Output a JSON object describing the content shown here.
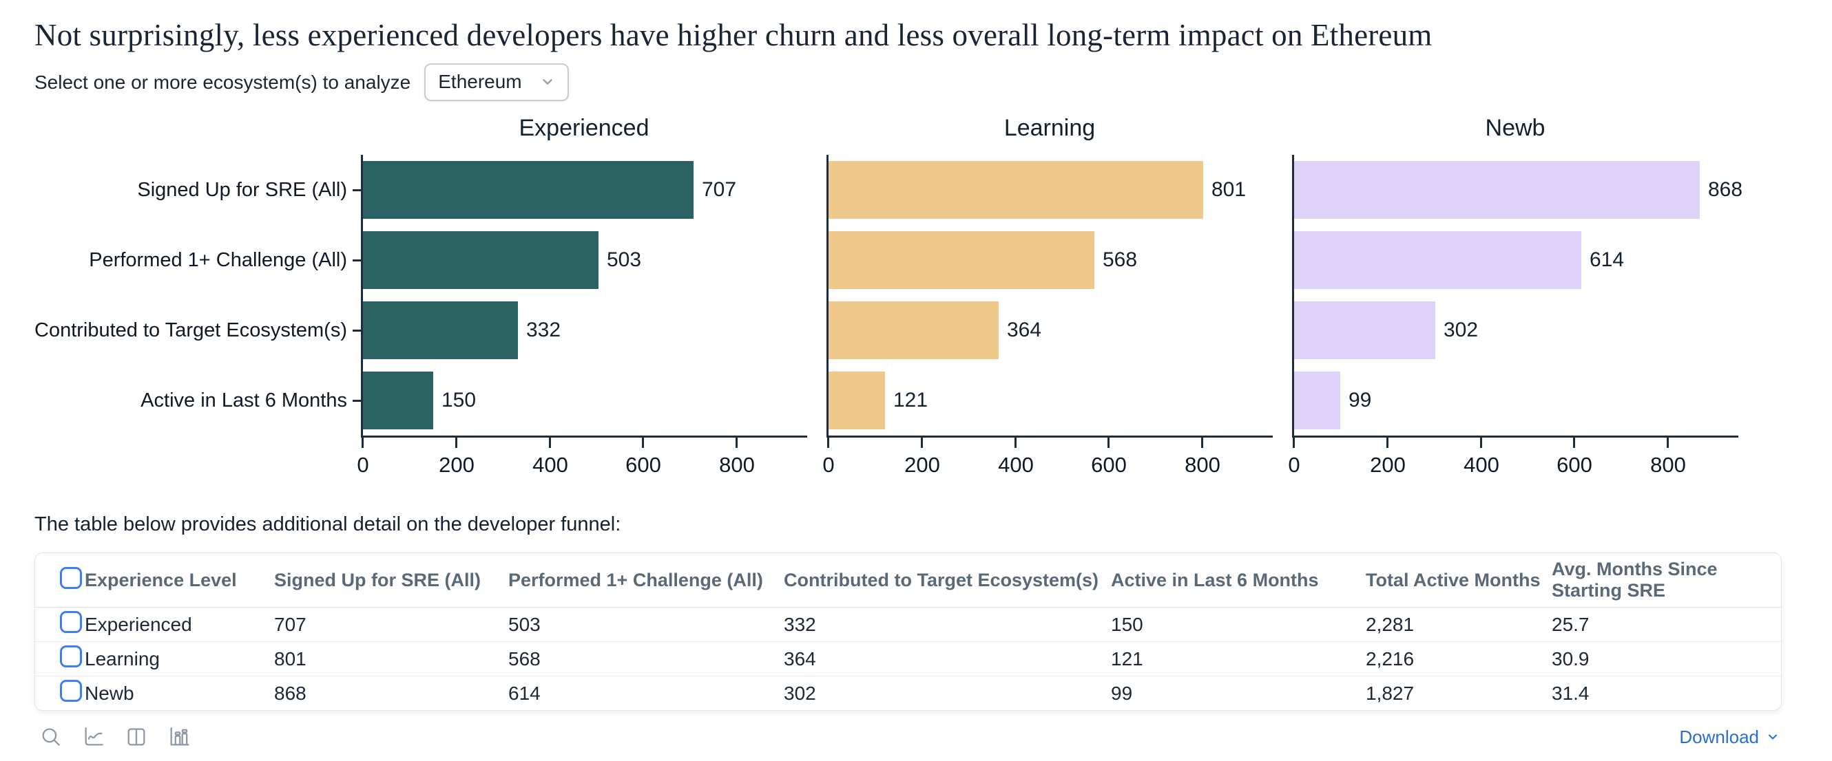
{
  "page_title": "Not surprisingly, less experienced developers have higher churn and less overall long-term impact on Ethereum",
  "selector": {
    "label": "Select one or more ecosystem(s) to analyze",
    "value": "Ethereum"
  },
  "chart_data": [
    {
      "type": "bar",
      "orientation": "horizontal",
      "title": "Experienced",
      "categories": [
        "Signed Up for SRE (All)",
        "Performed 1+ Challenge (All)",
        "Contributed to Target Ecosystem(s)",
        "Active in Last 6 Months"
      ],
      "values": [
        707,
        503,
        332,
        150
      ],
      "bar_color": "#2b6365",
      "xticks": [
        0,
        200,
        400,
        600,
        800
      ],
      "xlim": [
        0,
        950
      ],
      "show_category_labels": true,
      "grid": false,
      "value_labels": true
    },
    {
      "type": "bar",
      "orientation": "horizontal",
      "title": "Learning",
      "categories": [
        "Signed Up for SRE (All)",
        "Performed 1+ Challenge (All)",
        "Contributed to Target Ecosystem(s)",
        "Active in Last 6 Months"
      ],
      "values": [
        801,
        568,
        364,
        121
      ],
      "bar_color": "#efc98b",
      "xticks": [
        0,
        200,
        400,
        600,
        800
      ],
      "xlim": [
        0,
        950
      ],
      "show_category_labels": false,
      "grid": false,
      "value_labels": true
    },
    {
      "type": "bar",
      "orientation": "horizontal",
      "title": "Newb",
      "categories": [
        "Signed Up for SRE (All)",
        "Performed 1+ Challenge (All)",
        "Contributed to Target Ecosystem(s)",
        "Active in Last 6 Months"
      ],
      "values": [
        868,
        614,
        302,
        99
      ],
      "bar_color": "#ded2f8",
      "xticks": [
        0,
        200,
        400,
        600,
        800
      ],
      "xlim": [
        0,
        950
      ],
      "show_category_labels": false,
      "grid": false,
      "value_labels": true
    }
  ],
  "table_intro": "The table below provides additional detail on the developer funnel:",
  "table": {
    "headers": [
      "Experience Level",
      "Signed Up for SRE (All)",
      "Performed 1+ Challenge (All)",
      "Contributed to Target Ecosystem(s)",
      "Active in Last 6 Months",
      "Total Active Months",
      "Avg. Months Since Starting SRE"
    ],
    "rows": [
      [
        "Experienced",
        "707",
        "503",
        "332",
        "150",
        "2,281",
        "25.7"
      ],
      [
        "Learning",
        "801",
        "568",
        "364",
        "121",
        "2,216",
        "30.9"
      ],
      [
        "Newb",
        "868",
        "614",
        "302",
        "99",
        "1,827",
        "31.4"
      ]
    ]
  },
  "toolbar": {
    "icons": [
      "search-icon",
      "line-chart-icon",
      "split-view-icon",
      "bar-chart-icon"
    ]
  },
  "download": {
    "label": "Download"
  },
  "colors": {
    "axis": "#1e2c3e",
    "header_text": "#5a6878",
    "checkbox_blue": "#3d7ef0",
    "download_blue": "#2b6cdb",
    "toolbar_icon_gray": "#8d97a5"
  }
}
